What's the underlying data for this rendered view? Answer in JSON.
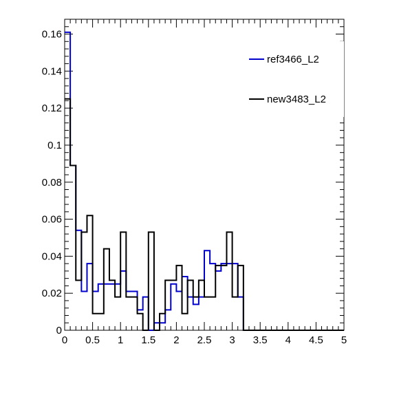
{
  "chart_data": {
    "type": "line",
    "title": "",
    "xlabel": "",
    "ylabel": "",
    "xlim": [
      0,
      5
    ],
    "ylim": [
      0,
      0.168
    ],
    "grid": false,
    "legend_position": "top-right",
    "bin_edges": [
      0,
      0.1,
      0.2,
      0.3,
      0.4,
      0.5,
      0.6,
      0.7,
      0.8,
      0.9,
      1.0,
      1.1,
      1.2,
      1.3,
      1.4,
      1.5,
      1.6,
      1.7,
      1.8,
      1.9,
      2.0,
      2.1,
      2.2,
      2.3,
      2.4,
      2.5,
      2.6,
      2.7,
      2.8,
      2.9,
      3.0,
      3.1,
      3.2,
      3.3,
      3.4,
      3.5,
      3.6,
      3.7,
      3.8,
      3.9,
      4.0,
      4.1,
      4.2,
      4.3,
      4.4,
      4.5,
      4.6,
      4.7,
      4.8,
      4.9,
      5.0
    ],
    "x_ticks": [
      "0",
      "0.5",
      "1",
      "1.5",
      "2",
      "2.5",
      "3",
      "3.5",
      "4",
      "4.5",
      "5"
    ],
    "x_tick_values": [
      0,
      0.5,
      1,
      1.5,
      2,
      2.5,
      3,
      3.5,
      4,
      4.5,
      5
    ],
    "y_ticks": [
      "0",
      "0.02",
      "0.04",
      "0.06",
      "0.08",
      "0.1",
      "0.12",
      "0.14",
      "0.16"
    ],
    "y_tick_values": [
      0,
      0.02,
      0.04,
      0.06,
      0.08,
      0.1,
      0.12,
      0.14,
      0.16
    ],
    "series": [
      {
        "name": "ref3466_L2",
        "color": "#0000cc",
        "values": [
          0.161,
          0.089,
          0.054,
          0.021,
          0.036,
          0.021,
          0.025,
          0.025,
          0.025,
          0.025,
          0.032,
          0.021,
          0.021,
          0.011,
          0.018,
          0.0,
          0.004,
          0.004,
          0.011,
          0.025,
          0.021,
          0.029,
          0.018,
          0.014,
          0.018,
          0.043,
          0.036,
          0.032,
          0.036,
          0.036,
          0.036,
          0.018,
          0,
          0,
          0,
          0,
          0,
          0,
          0,
          0,
          0,
          0,
          0,
          0,
          0,
          0,
          0,
          0,
          0,
          0
        ]
      },
      {
        "name": "new3483_L2",
        "color": "#000000",
        "values": [
          0.125,
          0.089,
          0.027,
          0.053,
          0.062,
          0.009,
          0.009,
          0.044,
          0.027,
          0.018,
          0.053,
          0.018,
          0.018,
          0.009,
          0.0,
          0.053,
          0.0,
          0.009,
          0.027,
          0.027,
          0.035,
          0.009,
          0.027,
          0.018,
          0.027,
          0.018,
          0.018,
          0.035,
          0.035,
          0.053,
          0.018,
          0.035,
          0,
          0,
          0,
          0,
          0,
          0,
          0,
          0,
          0,
          0,
          0,
          0,
          0,
          0,
          0,
          0,
          0,
          0
        ]
      }
    ]
  }
}
